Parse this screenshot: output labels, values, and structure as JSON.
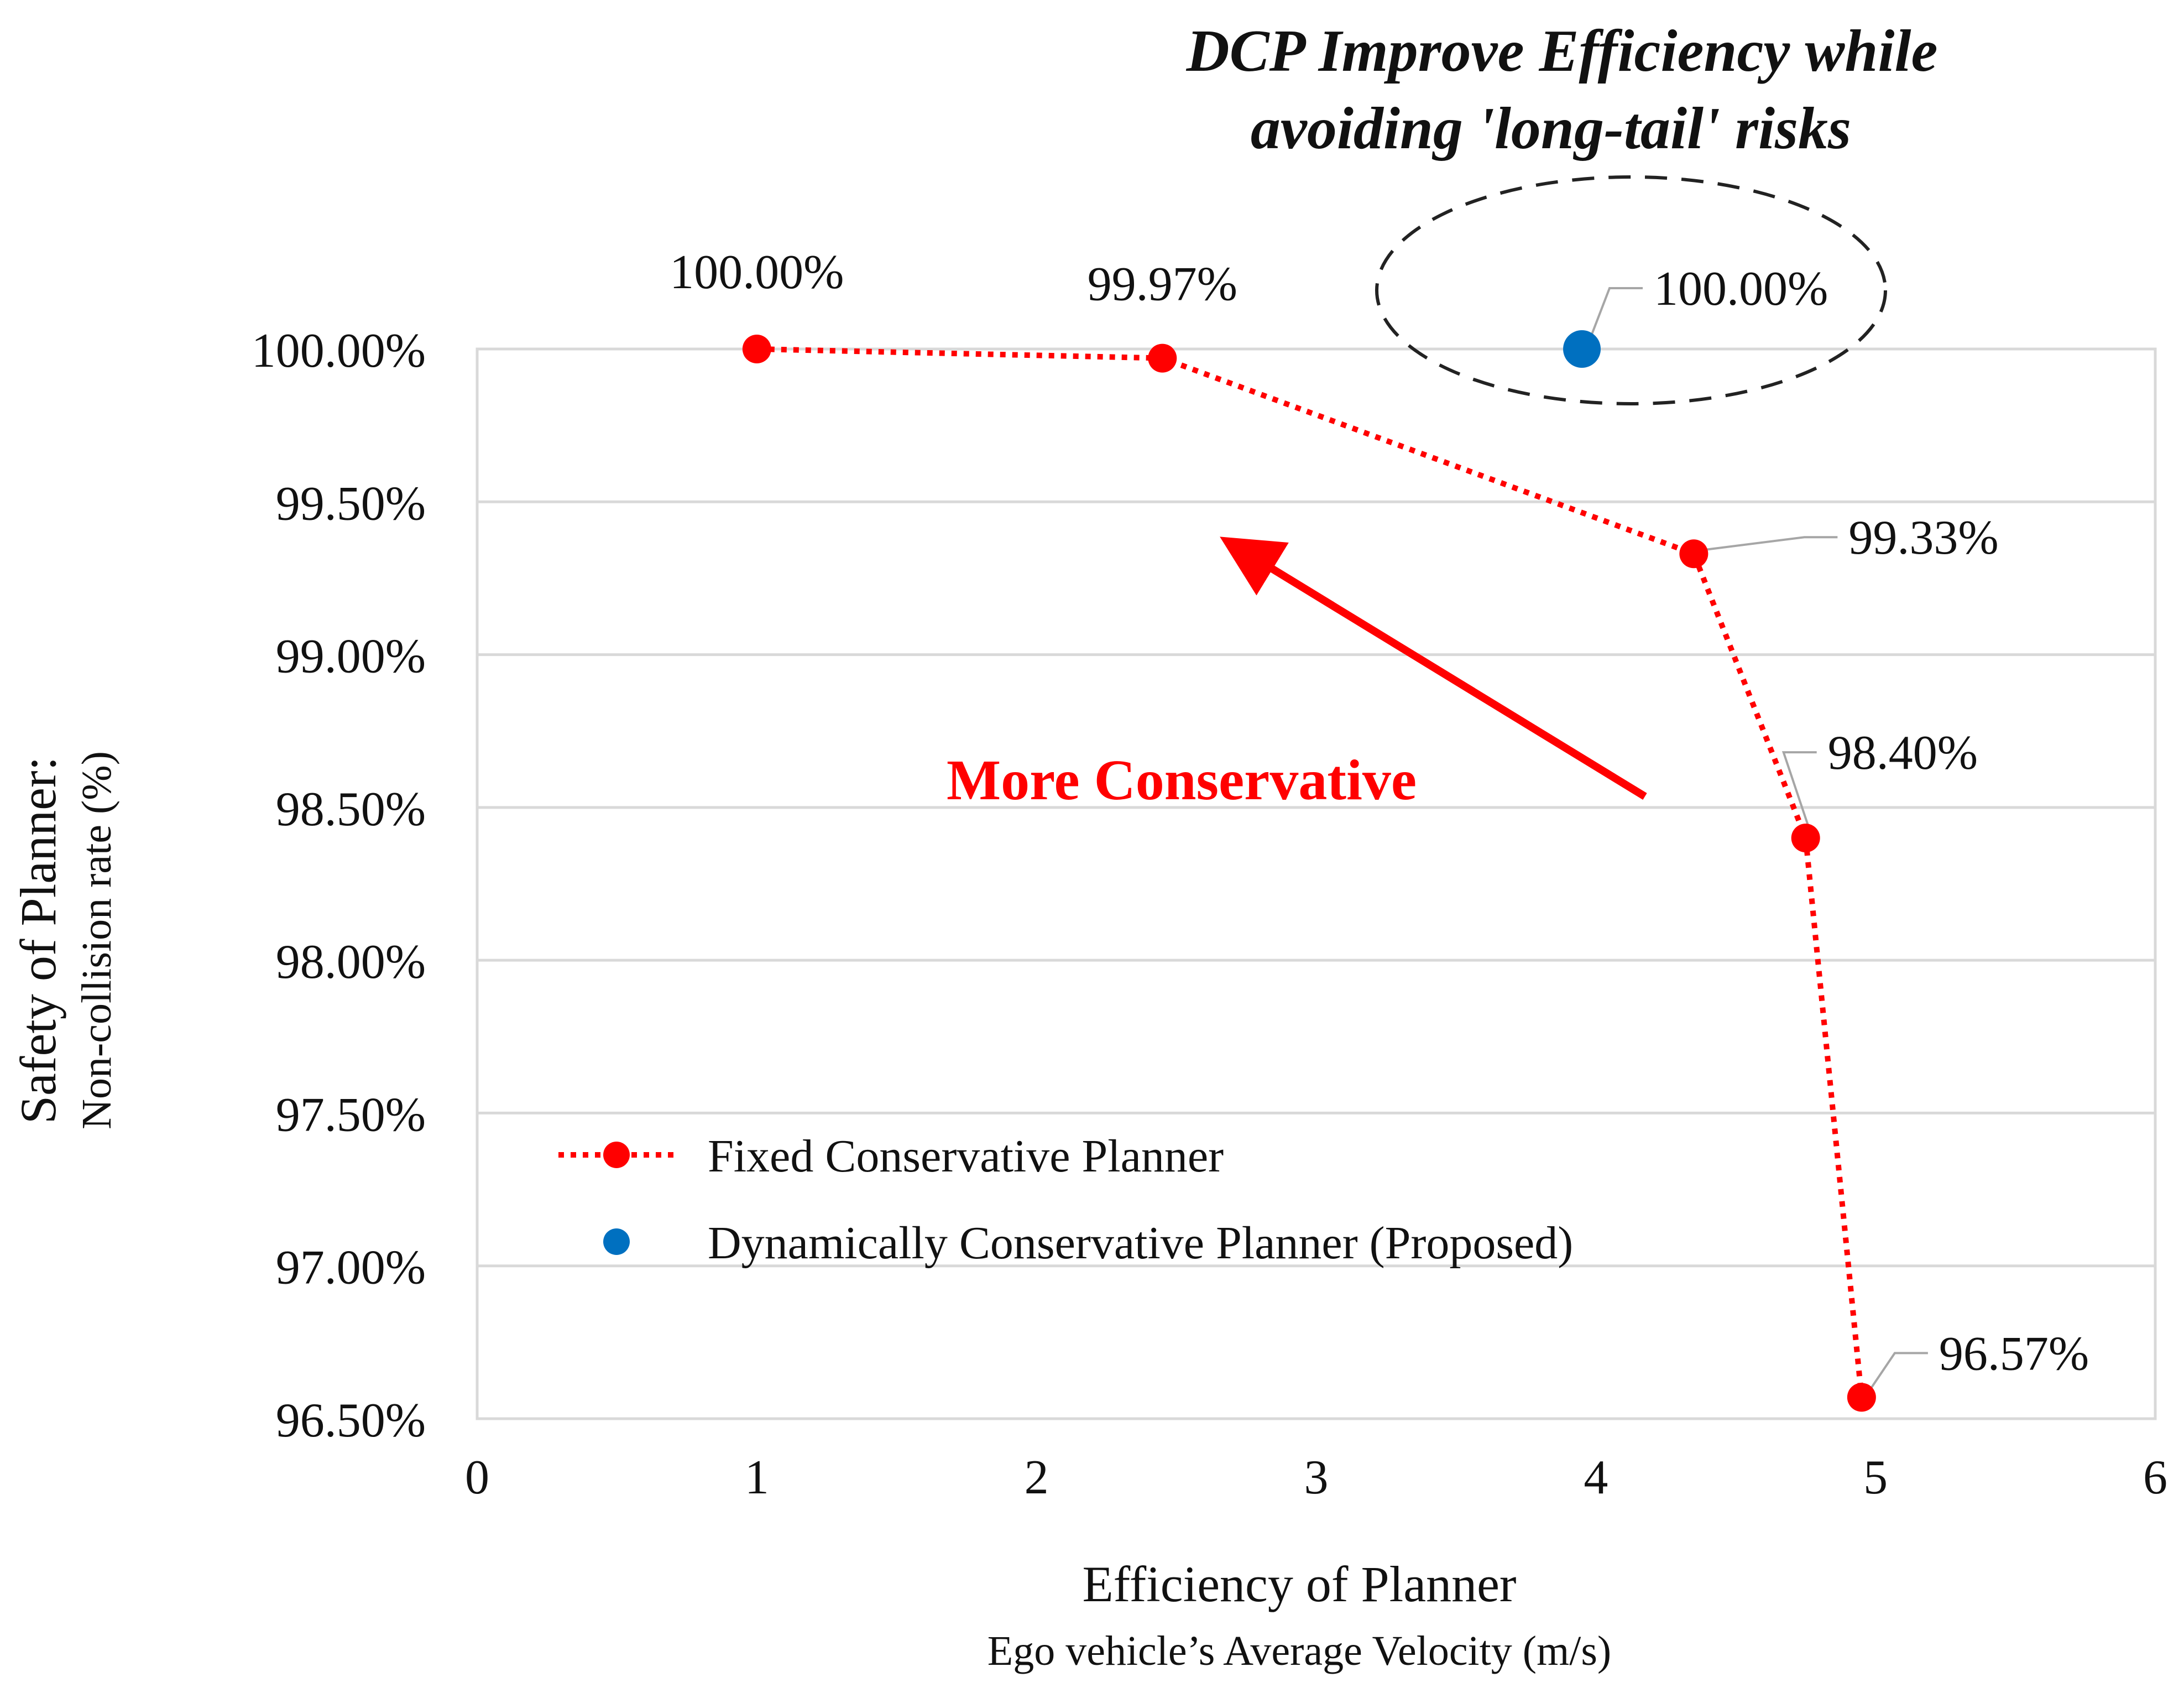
{
  "chart_data": {
    "type": "scatter",
    "title": "DCP Improve Efficiency while avoiding 'long-tail' risks",
    "title_lines": [
      "DCP Improve Efficiency while",
      "avoiding 'long-tail' risks"
    ],
    "xlabel": "Efficiency of Planner",
    "xlabel_sub": "Ego vehicle’s Average Velocity (m/s)",
    "ylabel": "Safety of Planner:",
    "ylabel_sub": "Non-collision rate (%)",
    "xlim": [
      0,
      6
    ],
    "ylim": [
      96.5,
      100.0
    ],
    "x_ticks": [
      0,
      1,
      2,
      3,
      4,
      5,
      6
    ],
    "x_tick_labels": [
      "0",
      "1",
      "2",
      "3",
      "4",
      "5",
      "6"
    ],
    "y_ticks": [
      96.5,
      97.0,
      97.5,
      98.0,
      98.5,
      99.0,
      99.5,
      100.0
    ],
    "y_tick_labels": [
      "96.50%",
      "97.00%",
      "97.50%",
      "98.00%",
      "98.50%",
      "99.00%",
      "99.50%",
      "100.00%"
    ],
    "grid": true,
    "legend_position": "lower-left",
    "series": [
      {
        "name": "Fixed Conservative Planner",
        "color": "#ff0000",
        "line_style": "dotted",
        "x": [
          1.0,
          2.45,
          4.35,
          4.75,
          4.95
        ],
        "y": [
          100.0,
          99.97,
          99.33,
          98.4,
          96.57
        ],
        "labels": [
          "100.00%",
          "99.97%",
          "99.33%",
          "98.40%",
          "96.57%"
        ]
      },
      {
        "name": "Dynamically Conservative Planner (Proposed)",
        "color": "#0070c0",
        "line_style": "none",
        "x": [
          3.95
        ],
        "y": [
          100.0
        ],
        "labels": [
          "100.00%"
        ]
      }
    ],
    "annotations": [
      {
        "text": "More Conservative",
        "color": "#ff0000"
      }
    ]
  }
}
